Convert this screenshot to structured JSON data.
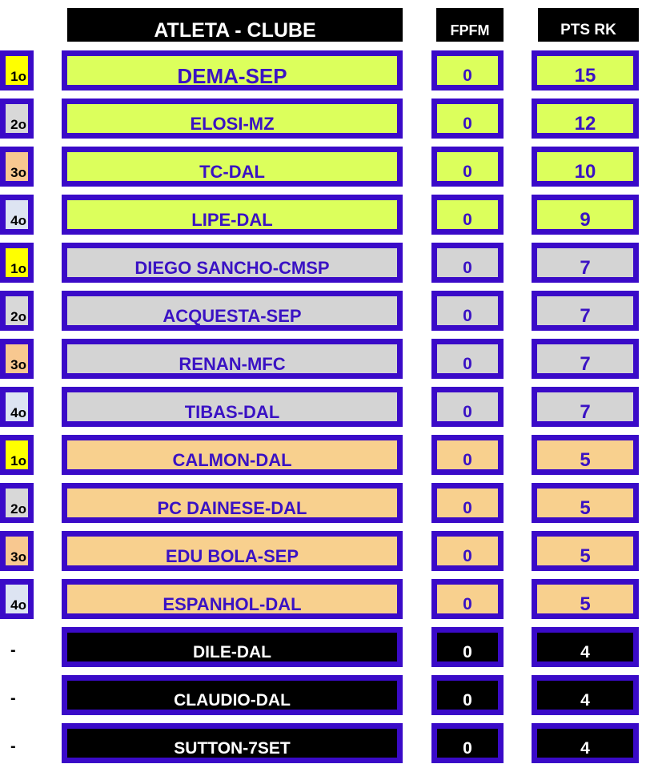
{
  "headers": {
    "athlete": "ATLETA - CLUBE",
    "fpfm": "FPFM",
    "pts": "PTS RK"
  },
  "colors": {
    "border": "#3a0ac8",
    "text": "#3a12c4",
    "group1": "#dcff5c",
    "group2": "#d4d4d4",
    "group3": "#f8d08e",
    "group4": "#000000",
    "rank1": "#ffff00",
    "rank2": "#d8d8d8",
    "rank3": "#f8c890",
    "rank4": "#dde4f2"
  },
  "rows": [
    {
      "rank": "1o",
      "name": "DEMA-SEP",
      "fpfm": "0",
      "pts": "15",
      "group": 1
    },
    {
      "rank": "2o",
      "name": "ELOSI-MZ",
      "fpfm": "0",
      "pts": "12",
      "group": 1
    },
    {
      "rank": "3o",
      "name": "TC-DAL",
      "fpfm": "0",
      "pts": "10",
      "group": 1
    },
    {
      "rank": "4o",
      "name": "LIPE-DAL",
      "fpfm": "0",
      "pts": "9",
      "group": 1
    },
    {
      "rank": "1o",
      "name": "DIEGO SANCHO-CMSP",
      "fpfm": "0",
      "pts": "7",
      "group": 2
    },
    {
      "rank": "2o",
      "name": "ACQUESTA-SEP",
      "fpfm": "0",
      "pts": "7",
      "group": 2
    },
    {
      "rank": "3o",
      "name": "RENAN-MFC",
      "fpfm": "0",
      "pts": "7",
      "group": 2
    },
    {
      "rank": "4o",
      "name": "TIBAS-DAL",
      "fpfm": "0",
      "pts": "7",
      "group": 2
    },
    {
      "rank": "1o",
      "name": "CALMON-DAL",
      "fpfm": "0",
      "pts": "5",
      "group": 3
    },
    {
      "rank": "2o",
      "name": "PC DAINESE-DAL",
      "fpfm": "0",
      "pts": "5",
      "group": 3
    },
    {
      "rank": "3o",
      "name": "EDU BOLA-SEP",
      "fpfm": "0",
      "pts": "5",
      "group": 3
    },
    {
      "rank": "4o",
      "name": "ESPANHOL-DAL",
      "fpfm": "0",
      "pts": "5",
      "group": 3
    },
    {
      "rank": "-",
      "name": "DILE-DAL",
      "fpfm": "0",
      "pts": "4",
      "group": 4
    },
    {
      "rank": "-",
      "name": "CLAUDIO-DAL",
      "fpfm": "0",
      "pts": "4",
      "group": 4
    },
    {
      "rank": "-",
      "name": "SUTTON-7SET",
      "fpfm": "0",
      "pts": "4",
      "group": 4
    }
  ]
}
